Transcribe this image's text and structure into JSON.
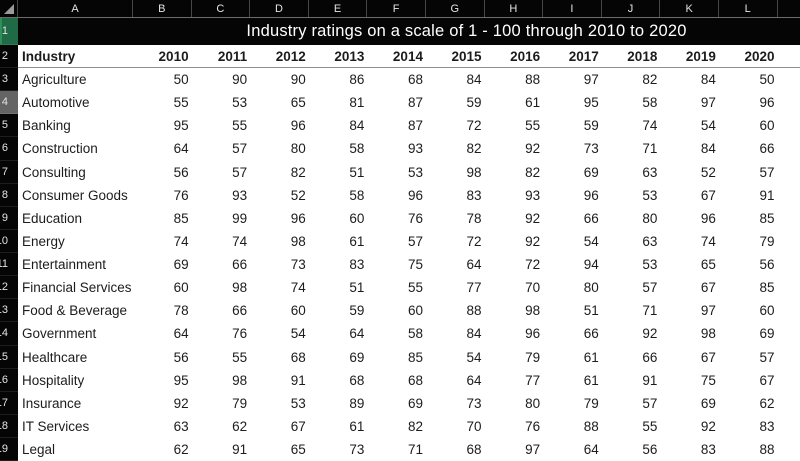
{
  "spreadsheet": {
    "title": "Industry ratings on a scale of 1 - 100 through 2010 to 2020",
    "column_letters": [
      "A",
      "B",
      "C",
      "D",
      "E",
      "F",
      "G",
      "H",
      "I",
      "J",
      "K",
      "L"
    ],
    "row_numbers": [
      "1",
      "2",
      "3",
      "4",
      "5",
      "6",
      "7",
      "8",
      "9",
      "10",
      "11",
      "12",
      "13",
      "14",
      "15",
      "16",
      "17",
      "18",
      "19"
    ],
    "header": {
      "industry_label": "Industry",
      "years": [
        "2010",
        "2011",
        "2012",
        "2013",
        "2014",
        "2015",
        "2016",
        "2017",
        "2018",
        "2019",
        "2020"
      ]
    },
    "rows": [
      {
        "industry": "Agriculture",
        "values": [
          50,
          90,
          90,
          86,
          68,
          84,
          88,
          97,
          82,
          84,
          50
        ]
      },
      {
        "industry": "Automotive",
        "values": [
          55,
          53,
          65,
          81,
          87,
          59,
          61,
          95,
          58,
          97,
          96
        ]
      },
      {
        "industry": "Banking",
        "values": [
          95,
          55,
          96,
          84,
          87,
          72,
          55,
          59,
          74,
          54,
          60
        ]
      },
      {
        "industry": "Construction",
        "values": [
          64,
          57,
          80,
          58,
          93,
          82,
          92,
          73,
          71,
          84,
          66
        ]
      },
      {
        "industry": "Consulting",
        "values": [
          56,
          57,
          82,
          51,
          53,
          98,
          82,
          69,
          63,
          52,
          57
        ]
      },
      {
        "industry": "Consumer Goods",
        "values": [
          76,
          93,
          52,
          58,
          96,
          83,
          93,
          96,
          53,
          67,
          91
        ]
      },
      {
        "industry": "Education",
        "values": [
          85,
          99,
          96,
          60,
          76,
          78,
          92,
          66,
          80,
          96,
          85
        ]
      },
      {
        "industry": "Energy",
        "values": [
          74,
          74,
          98,
          61,
          57,
          72,
          92,
          54,
          63,
          74,
          79
        ]
      },
      {
        "industry": "Entertainment",
        "values": [
          69,
          66,
          73,
          83,
          75,
          64,
          72,
          94,
          53,
          65,
          56
        ]
      },
      {
        "industry": "Financial Services",
        "values": [
          60,
          98,
          74,
          51,
          55,
          77,
          70,
          80,
          57,
          67,
          85
        ]
      },
      {
        "industry": "Food & Beverage",
        "values": [
          78,
          66,
          60,
          59,
          60,
          88,
          98,
          51,
          71,
          97,
          60
        ]
      },
      {
        "industry": "Government",
        "values": [
          64,
          76,
          54,
          64,
          58,
          84,
          96,
          66,
          92,
          98,
          69
        ]
      },
      {
        "industry": "Healthcare",
        "values": [
          56,
          55,
          68,
          69,
          85,
          54,
          79,
          61,
          66,
          67,
          57
        ]
      },
      {
        "industry": "Hospitality",
        "values": [
          95,
          98,
          91,
          68,
          68,
          64,
          77,
          61,
          91,
          75,
          67
        ]
      },
      {
        "industry": "Insurance",
        "values": [
          92,
          79,
          53,
          89,
          69,
          73,
          80,
          79,
          57,
          69,
          62
        ]
      },
      {
        "industry": "IT Services",
        "values": [
          63,
          62,
          67,
          61,
          82,
          70,
          76,
          88,
          55,
          92,
          83
        ]
      },
      {
        "industry": "Legal",
        "values": [
          62,
          91,
          65,
          73,
          71,
          68,
          97,
          64,
          56,
          83,
          88
        ]
      }
    ],
    "highlighted_row_number": "4",
    "selected_row_number": "1"
  },
  "colors": {
    "header_bg": "#050505",
    "header_text": "#e3e3e3",
    "selected_row_header_bg": "#1f6b45",
    "selected_row_header_edge": "#2f8f5b",
    "highlighted_row_header_bg": "#646464",
    "title_bg": "#050505",
    "title_text": "#ffffff",
    "year_row_border": "#8f8f8f",
    "cell_text": "#1c1c1c"
  }
}
